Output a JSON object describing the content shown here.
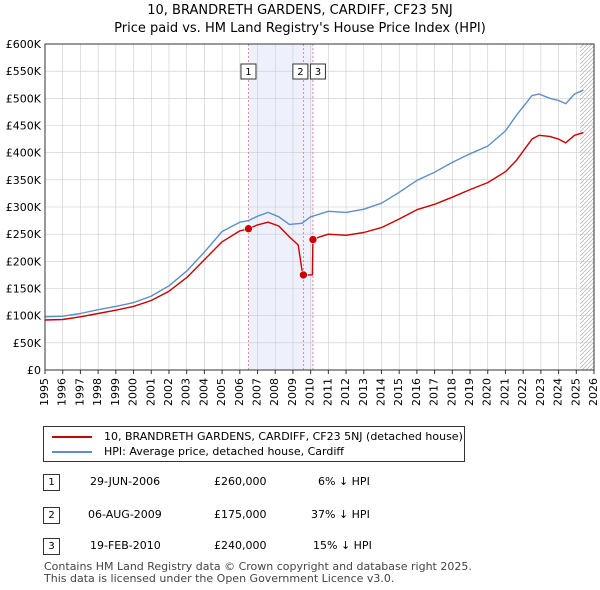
{
  "title_line1": "10, BRANDRETH GARDENS, CARDIFF, CF23 5NJ",
  "title_line2": "Price paid vs. HM Land Registry's House Price Index (HPI)",
  "colors": {
    "red": "#cc0000",
    "blue": "#5b8fc9",
    "band": "#eef0fb",
    "grid": "#cccccc"
  },
  "chart_data": {
    "type": "line",
    "xlim": [
      1995,
      2026
    ],
    "ylim": [
      0,
      600000
    ],
    "yticks": [
      0,
      50000,
      100000,
      150000,
      200000,
      250000,
      300000,
      350000,
      400000,
      450000,
      500000,
      550000,
      600000
    ],
    "ytick_labels": [
      "£0",
      "£50K",
      "£100K",
      "£150K",
      "£200K",
      "£250K",
      "£300K",
      "£350K",
      "£400K",
      "£450K",
      "£500K",
      "£550K",
      "£600K"
    ],
    "xticks": [
      1995,
      1996,
      1997,
      1998,
      1999,
      2000,
      2001,
      2002,
      2003,
      2004,
      2005,
      2006,
      2007,
      2008,
      2009,
      2010,
      2011,
      2012,
      2013,
      2014,
      2015,
      2016,
      2017,
      2018,
      2019,
      2020,
      2021,
      2022,
      2023,
      2024,
      2025,
      2026
    ],
    "shaded_band": [
      2006.49,
      2010.13
    ],
    "hatch_from": 2025.2,
    "series": [
      {
        "name": "10, BRANDRETH GARDENS, CARDIFF, CF23 5NJ (detached house)",
        "color": "#cc0000",
        "points": [
          [
            1995,
            92000
          ],
          [
            1996,
            93000
          ],
          [
            1997,
            98000
          ],
          [
            1998,
            104000
          ],
          [
            1999,
            110000
          ],
          [
            2000,
            117000
          ],
          [
            2001,
            128000
          ],
          [
            2002,
            145000
          ],
          [
            2003,
            170000
          ],
          [
            2004,
            203000
          ],
          [
            2005,
            236000
          ],
          [
            2006,
            256000
          ],
          [
            2006.49,
            260000
          ],
          [
            2007,
            267000
          ],
          [
            2007.6,
            272000
          ],
          [
            2008.2,
            265000
          ],
          [
            2008.8,
            245000
          ],
          [
            2009.3,
            230000
          ],
          [
            2009.55,
            175000
          ],
          [
            2010.1,
            175000
          ],
          [
            2010.13,
            240000
          ],
          [
            2010.5,
            245000
          ],
          [
            2011,
            250000
          ],
          [
            2012,
            248000
          ],
          [
            2013,
            253000
          ],
          [
            2014,
            262000
          ],
          [
            2015,
            278000
          ],
          [
            2016,
            295000
          ],
          [
            2017,
            305000
          ],
          [
            2018,
            318000
          ],
          [
            2019,
            332000
          ],
          [
            2020,
            345000
          ],
          [
            2021,
            365000
          ],
          [
            2021.6,
            385000
          ],
          [
            2022.5,
            425000
          ],
          [
            2022.9,
            432000
          ],
          [
            2023.5,
            430000
          ],
          [
            2024,
            425000
          ],
          [
            2024.4,
            418000
          ],
          [
            2024.9,
            432000
          ],
          [
            2025.4,
            437000
          ]
        ]
      },
      {
        "name": "HPI: Average price, detached house, Cardiff",
        "color": "#5b8fc9",
        "points": [
          [
            1995,
            98000
          ],
          [
            1996,
            99000
          ],
          [
            1997,
            104000
          ],
          [
            1998,
            111000
          ],
          [
            1999,
            117000
          ],
          [
            2000,
            124000
          ],
          [
            2001,
            136000
          ],
          [
            2002,
            155000
          ],
          [
            2003,
            182000
          ],
          [
            2004,
            217000
          ],
          [
            2005,
            255000
          ],
          [
            2006,
            272000
          ],
          [
            2006.49,
            275000
          ],
          [
            2007,
            283000
          ],
          [
            2007.6,
            290000
          ],
          [
            2008.2,
            282000
          ],
          [
            2008.8,
            268000
          ],
          [
            2009.5,
            270000
          ],
          [
            2010,
            282000
          ],
          [
            2011,
            292000
          ],
          [
            2012,
            290000
          ],
          [
            2013,
            296000
          ],
          [
            2014,
            307000
          ],
          [
            2015,
            327000
          ],
          [
            2016,
            349000
          ],
          [
            2017,
            364000
          ],
          [
            2018,
            382000
          ],
          [
            2019,
            398000
          ],
          [
            2020,
            412000
          ],
          [
            2021,
            440000
          ],
          [
            2021.6,
            468000
          ],
          [
            2022.5,
            505000
          ],
          [
            2022.9,
            508000
          ],
          [
            2023.5,
            500000
          ],
          [
            2024,
            496000
          ],
          [
            2024.4,
            490000
          ],
          [
            2024.9,
            508000
          ],
          [
            2025.4,
            515000
          ]
        ]
      }
    ],
    "sales": [
      {
        "label": "1",
        "date": 2006.49,
        "price": 260000
      },
      {
        "label": "2",
        "date": 2009.59,
        "price": 175000
      },
      {
        "label": "3",
        "date": 2010.13,
        "price": 240000
      }
    ]
  },
  "legend": {
    "red_label": "10, BRANDRETH GARDENS, CARDIFF, CF23 5NJ (detached house)",
    "blue_label": "HPI: Average price, detached house, Cardiff"
  },
  "table": [
    {
      "num": "1",
      "date": "29-JUN-2006",
      "price": "£260,000",
      "hpi": "6% ↓ HPI"
    },
    {
      "num": "2",
      "date": "06-AUG-2009",
      "price": "£175,000",
      "hpi": "37% ↓ HPI"
    },
    {
      "num": "3",
      "date": "19-FEB-2010",
      "price": "£240,000",
      "hpi": "15% ↓ HPI"
    }
  ],
  "footer_line1": "Contains HM Land Registry data © Crown copyright and database right 2025.",
  "footer_line2": "This data is licensed under the Open Government Licence v3.0."
}
